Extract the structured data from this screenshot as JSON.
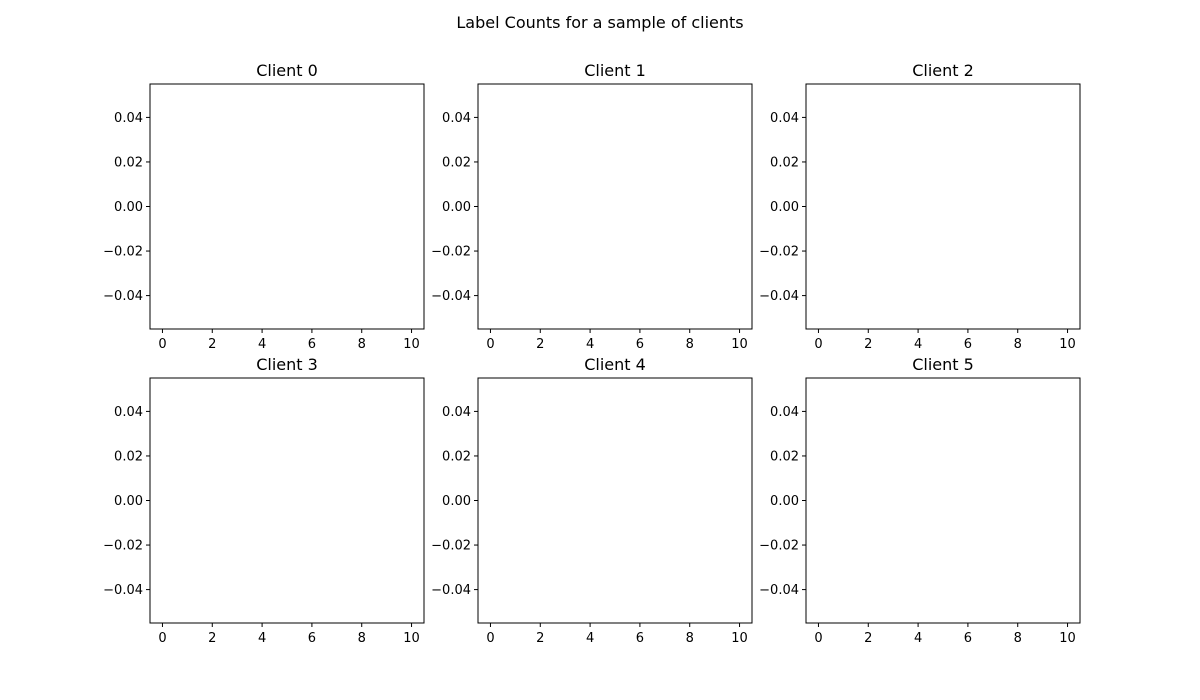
{
  "suptitle": "Label Counts for a sample of clients",
  "chart_data": [
    {
      "type": "bar",
      "title": "Client 0",
      "xlim": [
        -0.5,
        10.5
      ],
      "ylim": [
        -0.055,
        0.055
      ],
      "xticks": [
        0,
        2,
        4,
        6,
        8,
        10
      ],
      "yticks": [
        0.04,
        0.02,
        0.0,
        -0.02,
        -0.04
      ],
      "xtick_labels": [
        "0",
        "2",
        "4",
        "6",
        "8",
        "10"
      ],
      "ytick_labels": [
        "0.04",
        "0.02",
        "0.00",
        "−0.02",
        "−0.04"
      ],
      "categories": [],
      "values": [],
      "grid": false
    },
    {
      "type": "bar",
      "title": "Client 1",
      "xlim": [
        -0.5,
        10.5
      ],
      "ylim": [
        -0.055,
        0.055
      ],
      "xticks": [
        0,
        2,
        4,
        6,
        8,
        10
      ],
      "yticks": [
        0.04,
        0.02,
        0.0,
        -0.02,
        -0.04
      ],
      "xtick_labels": [
        "0",
        "2",
        "4",
        "6",
        "8",
        "10"
      ],
      "ytick_labels": [
        "0.04",
        "0.02",
        "0.00",
        "−0.02",
        "−0.04"
      ],
      "categories": [],
      "values": [],
      "grid": false
    },
    {
      "type": "bar",
      "title": "Client 2",
      "xlim": [
        -0.5,
        10.5
      ],
      "ylim": [
        -0.055,
        0.055
      ],
      "xticks": [
        0,
        2,
        4,
        6,
        8,
        10
      ],
      "yticks": [
        0.04,
        0.02,
        0.0,
        -0.02,
        -0.04
      ],
      "xtick_labels": [
        "0",
        "2",
        "4",
        "6",
        "8",
        "10"
      ],
      "ytick_labels": [
        "0.04",
        "0.02",
        "0.00",
        "−0.02",
        "−0.04"
      ],
      "categories": [],
      "values": [],
      "grid": false
    },
    {
      "type": "bar",
      "title": "Client 3",
      "xlim": [
        -0.5,
        10.5
      ],
      "ylim": [
        -0.055,
        0.055
      ],
      "xticks": [
        0,
        2,
        4,
        6,
        8,
        10
      ],
      "yticks": [
        0.04,
        0.02,
        0.0,
        -0.02,
        -0.04
      ],
      "xtick_labels": [
        "0",
        "2",
        "4",
        "6",
        "8",
        "10"
      ],
      "ytick_labels": [
        "0.04",
        "0.02",
        "0.00",
        "−0.02",
        "−0.04"
      ],
      "categories": [],
      "values": [],
      "grid": false
    },
    {
      "type": "bar",
      "title": "Client 4",
      "xlim": [
        -0.5,
        10.5
      ],
      "ylim": [
        -0.055,
        0.055
      ],
      "xticks": [
        0,
        2,
        4,
        6,
        8,
        10
      ],
      "yticks": [
        0.04,
        0.02,
        0.0,
        -0.02,
        -0.04
      ],
      "xtick_labels": [
        "0",
        "2",
        "4",
        "6",
        "8",
        "10"
      ],
      "ytick_labels": [
        "0.04",
        "0.02",
        "0.00",
        "−0.02",
        "−0.04"
      ],
      "categories": [],
      "values": [],
      "grid": false
    },
    {
      "type": "bar",
      "title": "Client 5",
      "xlim": [
        -0.5,
        10.5
      ],
      "ylim": [
        -0.055,
        0.055
      ],
      "xticks": [
        0,
        2,
        4,
        6,
        8,
        10
      ],
      "yticks": [
        0.04,
        0.02,
        0.0,
        -0.02,
        -0.04
      ],
      "xtick_labels": [
        "0",
        "2",
        "4",
        "6",
        "8",
        "10"
      ],
      "ytick_labels": [
        "0.04",
        "0.02",
        "0.00",
        "−0.02",
        "−0.04"
      ],
      "categories": [],
      "values": [],
      "grid": false
    }
  ]
}
